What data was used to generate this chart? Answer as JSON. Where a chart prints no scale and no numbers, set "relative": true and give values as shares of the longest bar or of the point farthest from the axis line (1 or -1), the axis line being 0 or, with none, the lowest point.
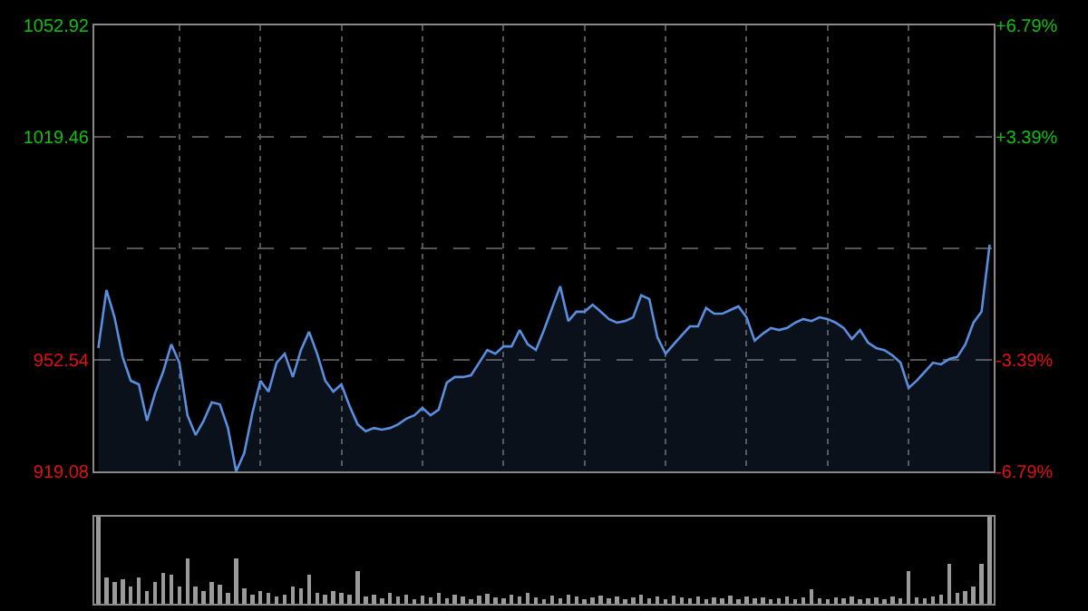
{
  "chart_data": [
    {
      "type": "area",
      "categories": [
        null,
        null,
        null,
        null,
        null,
        null,
        null,
        null,
        null,
        null,
        null,
        null,
        null,
        null,
        null,
        null,
        null,
        null,
        null,
        null,
        null,
        null,
        null,
        null,
        null,
        null,
        null,
        null,
        null,
        null,
        null,
        null,
        null,
        null,
        null,
        null,
        null,
        null,
        null,
        null,
        null,
        null,
        null,
        null,
        null,
        null,
        null,
        null,
        null,
        null,
        null,
        null,
        null,
        null,
        null,
        null,
        null,
        null,
        null,
        null,
        null,
        null,
        null,
        null,
        null,
        null,
        null,
        null,
        null,
        null,
        null,
        null,
        null,
        null,
        null,
        null,
        null,
        null,
        null,
        null,
        null,
        null,
        null,
        null,
        null,
        null,
        null,
        null,
        null,
        null,
        null,
        null,
        null,
        null,
        null,
        null,
        null,
        null,
        null,
        null,
        null,
        null,
        null,
        null,
        null,
        null,
        null,
        null,
        null,
        null,
        null
      ],
      "series": [
        {
          "color": "#5a8ede",
          "values": [
            956.1,
            973.5,
            965.3,
            953.4,
            946.3,
            945.2,
            934.3,
            942.5,
            949.0,
            957.2,
            951.7,
            935.9,
            930.0,
            934.3,
            939.8,
            939.2,
            932.1,
            919.1,
            924.5,
            936.5,
            946.3,
            943.0,
            951.7,
            954.4,
            947.4,
            955.5,
            961.0,
            954.4,
            946.3,
            943.0,
            945.2,
            938.7,
            933.2,
            931.1,
            932.1,
            931.6,
            932.1,
            933.2,
            934.9,
            935.9,
            938.1,
            935.9,
            937.6,
            945.7,
            947.4,
            947.4,
            947.9,
            951.7,
            955.5,
            954.4,
            956.6,
            956.6,
            961.5,
            957.2,
            955.5,
            961.5,
            968.1,
            974.6,
            964.2,
            967.0,
            967.0,
            969.1,
            967.0,
            964.8,
            963.7,
            964.2,
            965.3,
            971.9,
            970.8,
            959.3,
            954.4,
            957.2,
            959.9,
            962.6,
            962.6,
            968.1,
            966.4,
            966.4,
            967.5,
            968.6,
            965.3,
            958.3,
            960.4,
            962.1,
            961.5,
            962.1,
            963.7,
            964.8,
            964.2,
            965.3,
            964.8,
            963.7,
            962.1,
            958.8,
            961.5,
            957.7,
            956.1,
            955.5,
            953.9,
            951.7,
            944.1,
            946.3,
            949.0,
            951.7,
            951.2,
            952.8,
            953.4,
            957.2,
            963.7,
            967.0,
            987.1
          ]
        }
      ],
      "ylim": [
        919.08,
        1052.92
      ],
      "yticks": [
        919.08,
        952.54,
        {
          "value": 986,
          "label": null
        },
        1019.46,
        1052.92
      ],
      "y2lim": [
        -6.79,
        6.79
      ],
      "y2ticks": [
        {
          "value": -6.79,
          "label": "-6.79%"
        },
        {
          "value": -3.39,
          "label": "-3.39%"
        },
        {
          "value": 0,
          "label": null
        },
        {
          "value": 3.39,
          "label": "+3.39%"
        },
        {
          "value": 6.79,
          "label": "+6.79%"
        }
      ],
      "grid": true,
      "tick_labels": "y"
    },
    {
      "type": "bar",
      "relative": true,
      "tick_labels": false,
      "categories": [
        null,
        null,
        null,
        null,
        null,
        null,
        null,
        null,
        null,
        null,
        null,
        null,
        null,
        null,
        null,
        null,
        null,
        null,
        null,
        null,
        null,
        null,
        null,
        null,
        null,
        null,
        null,
        null,
        null,
        null,
        null,
        null,
        null,
        null,
        null,
        null,
        null,
        null,
        null,
        null,
        null,
        null,
        null,
        null,
        null,
        null,
        null,
        null,
        null,
        null,
        null,
        null,
        null,
        null,
        null,
        null,
        null,
        null,
        null,
        null,
        null,
        null,
        null,
        null,
        null,
        null,
        null,
        null,
        null,
        null,
        null,
        null,
        null,
        null,
        null,
        null,
        null,
        null,
        null,
        null,
        null,
        null,
        null,
        null,
        null,
        null,
        null,
        null,
        null,
        null,
        null,
        null,
        null,
        null,
        null,
        null,
        null,
        null,
        null,
        null,
        null,
        null,
        null,
        null,
        null,
        null,
        null,
        null,
        null,
        null,
        null
      ],
      "series": [
        {
          "color": "#9a9a9a",
          "values": [
            1,
            0.3,
            0.25,
            0.28,
            0.2,
            0.3,
            0.15,
            0.25,
            0.35,
            0.33,
            0.2,
            0.52,
            0.2,
            0.15,
            0.25,
            0.22,
            0.12,
            0.52,
            0.18,
            0.1,
            0.15,
            0.12,
            0.08,
            0.1,
            0.2,
            0.18,
            0.33,
            0.12,
            0.1,
            0.15,
            0.12,
            0.1,
            0.37,
            0.08,
            0.1,
            0.06,
            0.12,
            0.08,
            0.1,
            0.05,
            0.09,
            0.07,
            0.12,
            0.06,
            0.1,
            0.08,
            0.05,
            0.09,
            0.11,
            0.07,
            0.06,
            0.1,
            0.08,
            0.13,
            0.07,
            0.05,
            0.09,
            0.06,
            0.1,
            0.08,
            0.05,
            0.07,
            0.09,
            0.06,
            0.08,
            0.05,
            0.07,
            0.1,
            0.06,
            0.08,
            0.05,
            0.09,
            0.07,
            0.06,
            0.08,
            0.05,
            0.07,
            0.06,
            0.09,
            0.05,
            0.08,
            0.06,
            0.07,
            0.05,
            0.06,
            0.08,
            0.05,
            0.07,
            0.17,
            0.06,
            0.05,
            0.07,
            0.06,
            0.08,
            0.05,
            0.06,
            0.07,
            0.05,
            0.08,
            0.06,
            0.37,
            0.07,
            0.06,
            0.08,
            0.1,
            0.46,
            0.12,
            0.15,
            0.2,
            0.46,
            1
          ]
        }
      ]
    }
  ]
}
